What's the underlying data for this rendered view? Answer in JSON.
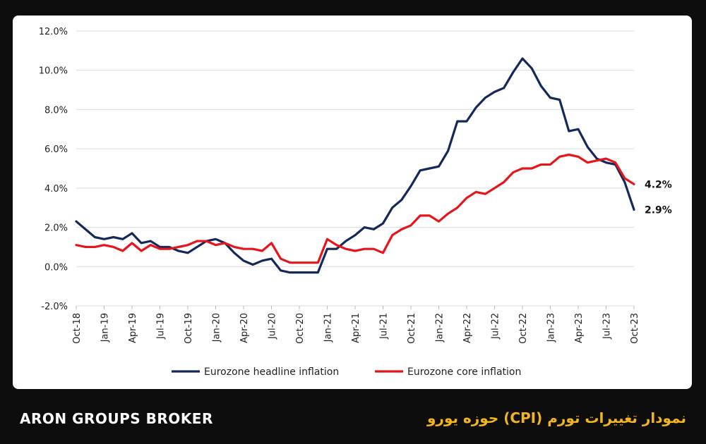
{
  "footer": {
    "brand": "ARON GROUPS BROKER",
    "title": "نمودار تغییرات تورم (CPI) حوزه یورو"
  },
  "colors": {
    "headline": "#14285a",
    "core": "#e8141b",
    "background": "#0d0d0d",
    "title": "#f2b51b"
  },
  "chart_data": {
    "type": "line",
    "ylim": [
      -2,
      12
    ],
    "y_ticks": [
      "12.0%",
      "10.0%",
      "8.0%",
      "6.0%",
      "4.0%",
      "2.0%",
      "0.0%",
      "-2.0%"
    ],
    "y_tick_values": [
      12,
      10,
      8,
      6,
      4,
      2,
      0,
      -2
    ],
    "x_tick_labels": [
      "Oct-18",
      "Jan-19",
      "Apr-19",
      "Jul-19",
      "Oct-19",
      "Jan-20",
      "Apr-20",
      "Jul-20",
      "Oct-20",
      "Jan-21",
      "Apr-21",
      "Jul-21",
      "Oct-21",
      "Jan-22",
      "Apr-22",
      "Jul-22",
      "Oct-22",
      "Jan-23",
      "Apr-23",
      "Jul-23",
      "Oct-23"
    ],
    "grid": "horizontal",
    "legend": "bottom",
    "end_labels": {
      "core": "4.2%",
      "headline": "2.9%"
    },
    "x": [
      "Oct-18",
      "Nov-18",
      "Dec-18",
      "Jan-19",
      "Feb-19",
      "Mar-19",
      "Apr-19",
      "May-19",
      "Jun-19",
      "Jul-19",
      "Aug-19",
      "Sep-19",
      "Oct-19",
      "Nov-19",
      "Dec-19",
      "Jan-20",
      "Feb-20",
      "Mar-20",
      "Apr-20",
      "May-20",
      "Jun-20",
      "Jul-20",
      "Aug-20",
      "Sep-20",
      "Oct-20",
      "Nov-20",
      "Dec-20",
      "Jan-21",
      "Feb-21",
      "Mar-21",
      "Apr-21",
      "May-21",
      "Jun-21",
      "Jul-21",
      "Aug-21",
      "Sep-21",
      "Oct-21",
      "Nov-21",
      "Dec-21",
      "Jan-22",
      "Feb-22",
      "Mar-22",
      "Apr-22",
      "May-22",
      "Jun-22",
      "Jul-22",
      "Aug-22",
      "Sep-22",
      "Oct-22",
      "Nov-22",
      "Dec-22",
      "Jan-23",
      "Feb-23",
      "Mar-23",
      "Apr-23",
      "May-23",
      "Jun-23",
      "Jul-23",
      "Aug-23",
      "Sep-23",
      "Oct-23"
    ],
    "series": [
      {
        "name": "Eurozone headline inflation",
        "key": "headline",
        "values": [
          2.3,
          1.9,
          1.5,
          1.4,
          1.5,
          1.4,
          1.7,
          1.2,
          1.3,
          1.0,
          1.0,
          0.8,
          0.7,
          1.0,
          1.3,
          1.4,
          1.2,
          0.7,
          0.3,
          0.1,
          0.3,
          0.4,
          -0.2,
          -0.3,
          -0.3,
          -0.3,
          -0.3,
          0.9,
          0.9,
          1.3,
          1.6,
          2.0,
          1.9,
          2.2,
          3.0,
          3.4,
          4.1,
          4.9,
          5.0,
          5.1,
          5.9,
          7.4,
          7.4,
          8.1,
          8.6,
          8.9,
          9.1,
          9.9,
          10.6,
          10.1,
          9.2,
          8.6,
          8.5,
          6.9,
          7.0,
          6.1,
          5.5,
          5.3,
          5.2,
          4.3,
          2.9
        ]
      },
      {
        "name": "Eurozone core inflation",
        "key": "core",
        "values": [
          1.1,
          1.0,
          1.0,
          1.1,
          1.0,
          0.8,
          1.2,
          0.8,
          1.1,
          0.9,
          0.9,
          1.0,
          1.1,
          1.3,
          1.3,
          1.1,
          1.2,
          1.0,
          0.9,
          0.9,
          0.8,
          1.2,
          0.4,
          0.2,
          0.2,
          0.2,
          0.2,
          1.4,
          1.1,
          0.9,
          0.8,
          0.9,
          0.9,
          0.7,
          1.6,
          1.9,
          2.1,
          2.6,
          2.6,
          2.3,
          2.7,
          3.0,
          3.5,
          3.8,
          3.7,
          4.0,
          4.3,
          4.8,
          5.0,
          5.0,
          5.2,
          5.2,
          5.6,
          5.7,
          5.6,
          5.3,
          5.4,
          5.5,
          5.3,
          4.5,
          4.2
        ]
      }
    ]
  }
}
